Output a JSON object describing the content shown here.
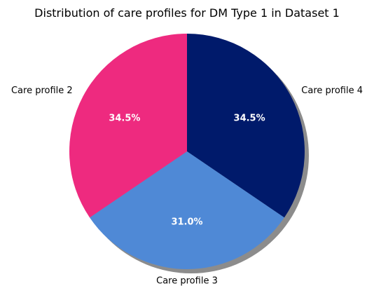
{
  "chart_data": {
    "type": "pie",
    "title": "Distribution of care profiles for DM Type 1 in Dataset 1",
    "slices": [
      {
        "label": "Care profile 4",
        "value": 34.5,
        "pct_label": "34.5%",
        "color": "#001a6b"
      },
      {
        "label": "Care profile 3",
        "value": 31.0,
        "pct_label": "31.0%",
        "color": "#4f89d6"
      },
      {
        "label": "Care profile 2",
        "value": 34.5,
        "pct_label": "34.5%",
        "color": "#ee2a7f"
      }
    ],
    "start_angle_deg": 90,
    "direction": "clockwise",
    "shadow": true,
    "legend": "none"
  }
}
